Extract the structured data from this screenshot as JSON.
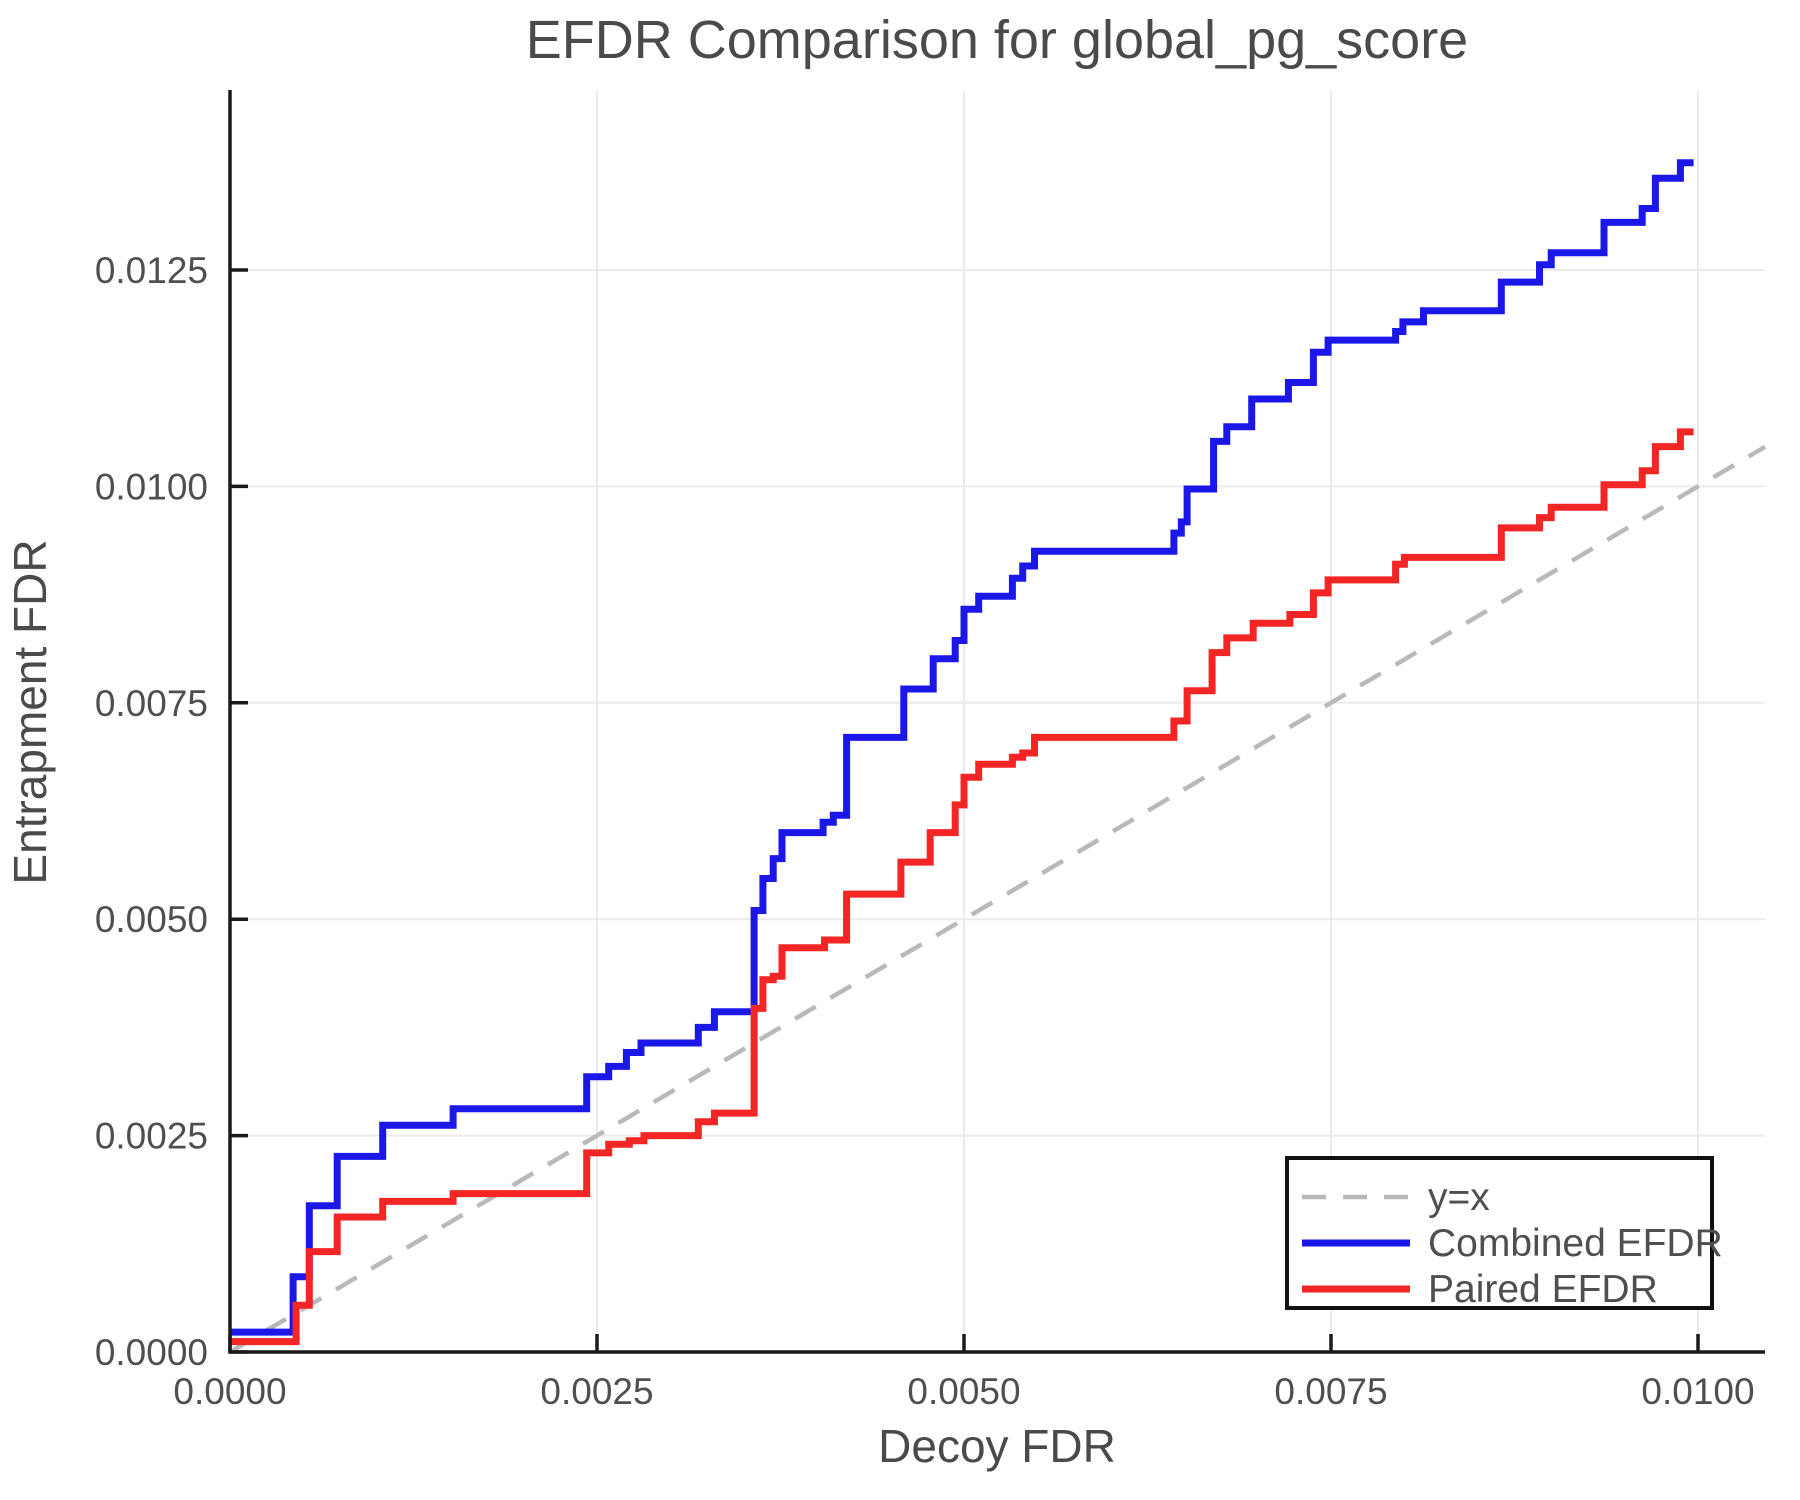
{
  "title": "EFDR Comparison for global_pg_score",
  "axes": {
    "xlabel": "Decoy FDR",
    "ylabel": "Entrapment FDR",
    "x_ticks": {
      "values": [
        0.0,
        0.0025,
        0.005,
        0.0075,
        0.01
      ],
      "labels": [
        "0.0000",
        "0.0025",
        "0.0050",
        "0.0075",
        "0.0100"
      ]
    },
    "y_ticks": {
      "values": [
        0.0,
        0.0025,
        0.005,
        0.0075,
        0.01,
        0.0125
      ],
      "labels": [
        "0.0000",
        "0.0025",
        "0.0050",
        "0.0075",
        "0.0100",
        "0.0125"
      ]
    }
  },
  "colors": {
    "combined": "#1a17e8",
    "paired": "#f42525",
    "identity": "#b9b9b9",
    "grid": "#ebebeb",
    "spine": "#1a1a1a",
    "tick_text": "#4f4f4f"
  },
  "legend": {
    "entries": [
      {
        "label": "y=x",
        "color": "#b9b9b9",
        "dashed": true
      },
      {
        "label": "Combined EFDR",
        "color": "#1a17e8",
        "dashed": false
      },
      {
        "label": "Paired EFDR",
        "color": "#f42525",
        "dashed": false
      }
    ]
  },
  "chart_data": {
    "type": "line",
    "title": "EFDR Comparison for global_pg_score",
    "xlabel": "Decoy FDR",
    "ylabel": "Entrapment FDR",
    "xlim": [
      0.0,
      0.01046
    ],
    "ylim": [
      0.0,
      0.01458
    ],
    "grid": true,
    "legend_position": "lower right",
    "series": [
      {
        "name": "y=x",
        "color": "#b9b9b9",
        "style": "dashed",
        "step": false,
        "points": [
          [
            0.0,
            0.0
          ],
          [
            0.010457,
            0.010457
          ]
        ]
      },
      {
        "name": "Combined EFDR",
        "color": "#1a17e8",
        "style": "solid",
        "step": true,
        "points": [
          [
            0.0,
            0.00023
          ],
          [
            0.00043,
            0.00087
          ],
          [
            0.00054,
            0.00169
          ],
          [
            0.00073,
            0.00226
          ],
          [
            0.00104,
            0.00262
          ],
          [
            0.00152,
            0.00281
          ],
          [
            0.00243,
            0.00318
          ],
          [
            0.00258,
            0.0033
          ],
          [
            0.0027,
            0.00346
          ],
          [
            0.0028,
            0.00357
          ],
          [
            0.00319,
            0.00375
          ],
          [
            0.0033,
            0.00393
          ],
          [
            0.00357,
            0.0051
          ],
          [
            0.00363,
            0.00547
          ],
          [
            0.0037,
            0.0057
          ],
          [
            0.00376,
            0.006
          ],
          [
            0.00404,
            0.00612
          ],
          [
            0.00411,
            0.0062
          ],
          [
            0.0042,
            0.0071
          ],
          [
            0.00459,
            0.00766
          ],
          [
            0.00479,
            0.00801
          ],
          [
            0.00494,
            0.00822
          ],
          [
            0.005,
            0.00858
          ],
          [
            0.0051,
            0.00873
          ],
          [
            0.00533,
            0.00894
          ],
          [
            0.0054,
            0.00908
          ],
          [
            0.00548,
            0.00925
          ],
          [
            0.00643,
            0.00946
          ],
          [
            0.00648,
            0.00959
          ],
          [
            0.00652,
            0.00997
          ],
          [
            0.0067,
            0.01052
          ],
          [
            0.00679,
            0.01069
          ],
          [
            0.00696,
            0.01101
          ],
          [
            0.00721,
            0.0112
          ],
          [
            0.00738,
            0.01155
          ],
          [
            0.00748,
            0.01169
          ],
          [
            0.00794,
            0.01179
          ],
          [
            0.00799,
            0.0119
          ],
          [
            0.00813,
            0.01203
          ],
          [
            0.00866,
            0.01236
          ],
          [
            0.00892,
            0.01256
          ],
          [
            0.009,
            0.0127
          ],
          [
            0.00936,
            0.01305
          ],
          [
            0.00962,
            0.01321
          ],
          [
            0.00971,
            0.01356
          ],
          [
            0.00988,
            0.01374
          ],
          [
            0.00997,
            0.01374
          ]
        ]
      },
      {
        "name": "Paired EFDR",
        "color": "#f42525",
        "style": "solid",
        "step": true,
        "points": [
          [
            0.0,
            0.00012
          ],
          [
            0.00045,
            0.00054
          ],
          [
            0.00054,
            0.00116
          ],
          [
            0.00073,
            0.00156
          ],
          [
            0.00104,
            0.00174
          ],
          [
            0.00152,
            0.00183
          ],
          [
            0.00243,
            0.0023
          ],
          [
            0.00258,
            0.0024
          ],
          [
            0.00272,
            0.00244
          ],
          [
            0.00282,
            0.0025
          ],
          [
            0.00319,
            0.00266
          ],
          [
            0.0033,
            0.00276
          ],
          [
            0.00357,
            0.00397
          ],
          [
            0.00363,
            0.0043
          ],
          [
            0.0037,
            0.00434
          ],
          [
            0.00376,
            0.00467
          ],
          [
            0.00405,
            0.00476
          ],
          [
            0.0042,
            0.00529
          ],
          [
            0.00457,
            0.00566
          ],
          [
            0.00477,
            0.006
          ],
          [
            0.00494,
            0.00632
          ],
          [
            0.005,
            0.00664
          ],
          [
            0.0051,
            0.00679
          ],
          [
            0.00533,
            0.00687
          ],
          [
            0.0054,
            0.00692
          ],
          [
            0.00548,
            0.0071
          ],
          [
            0.00643,
            0.00729
          ],
          [
            0.00652,
            0.00764
          ],
          [
            0.00669,
            0.00808
          ],
          [
            0.00679,
            0.00825
          ],
          [
            0.00697,
            0.00842
          ],
          [
            0.00722,
            0.00852
          ],
          [
            0.00738,
            0.00877
          ],
          [
            0.00748,
            0.00892
          ],
          [
            0.00794,
            0.0091
          ],
          [
            0.008,
            0.00918
          ],
          [
            0.00866,
            0.00952
          ],
          [
            0.00892,
            0.00964
          ],
          [
            0.009,
            0.00976
          ],
          [
            0.00936,
            0.01002
          ],
          [
            0.00962,
            0.01018
          ],
          [
            0.00971,
            0.01046
          ],
          [
            0.00988,
            0.01063
          ],
          [
            0.00997,
            0.01063
          ]
        ]
      }
    ]
  }
}
